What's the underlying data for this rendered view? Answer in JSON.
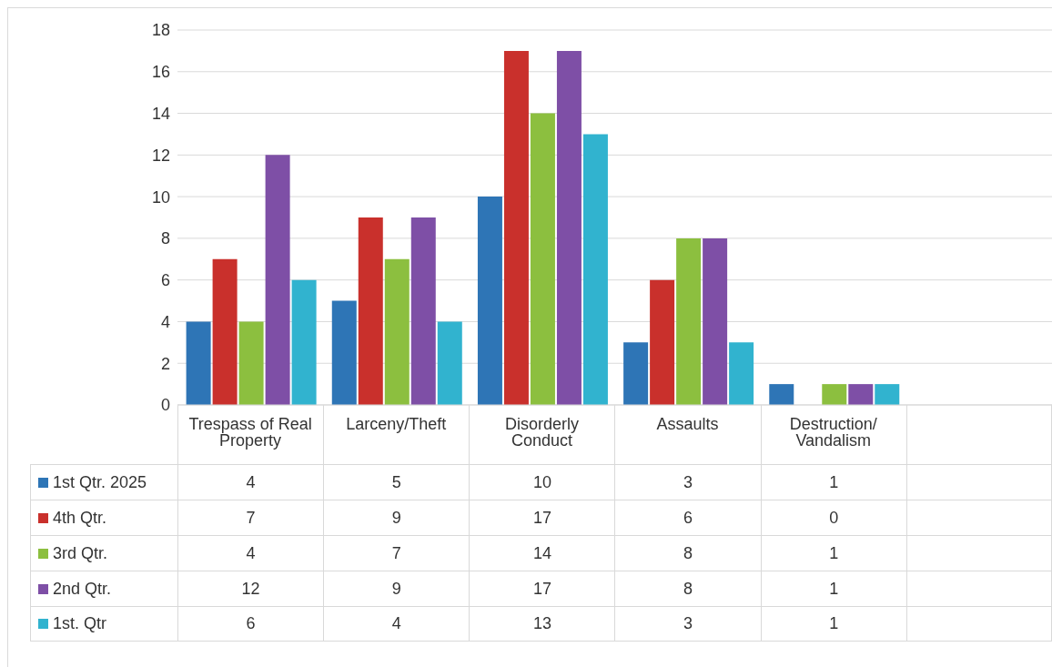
{
  "chart_data": {
    "type": "bar",
    "categories": [
      "Trespass of Real Property",
      "Larceny/Theft",
      "Disorderly Conduct",
      "Assaults",
      "Destruction/ Vandalism",
      null
    ],
    "series": [
      {
        "name": "1st Qtr. 2025",
        "color": "#2e75b6",
        "values": [
          4,
          5,
          10,
          3,
          1,
          null
        ]
      },
      {
        "name": "4th Qtr.",
        "color": "#c9302c",
        "values": [
          7,
          9,
          17,
          6,
          0,
          null
        ]
      },
      {
        "name": "3rd Qtr.",
        "color": "#8cbf3f",
        "values": [
          4,
          7,
          14,
          8,
          1,
          null
        ]
      },
      {
        "name": "2nd Qtr.",
        "color": "#7e4fa6",
        "values": [
          12,
          9,
          17,
          8,
          1,
          null
        ]
      },
      {
        "name": "1st. Qtr",
        "color": "#31b3cf",
        "values": [
          6,
          4,
          13,
          3,
          1,
          null
        ]
      }
    ],
    "ylim": [
      0,
      18
    ],
    "yticks": [
      0,
      2,
      4,
      6,
      8,
      10,
      12,
      14,
      16,
      18
    ],
    "grid": "y",
    "legend": "bottom",
    "data_labels": true
  }
}
